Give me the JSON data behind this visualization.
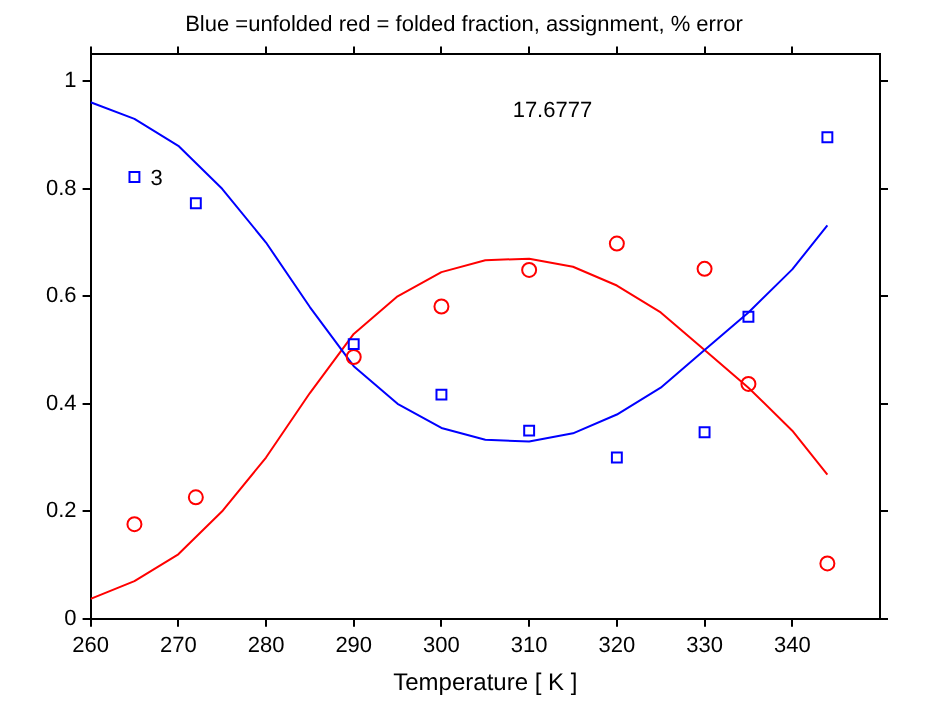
{
  "chart_data": {
    "type": "scatter",
    "title": "Blue =unfolded red = folded fraction, assignment, % error",
    "xlabel": "Temperature [ K ]",
    "xlim": [
      260,
      350
    ],
    "xticks": [
      260,
      270,
      280,
      290,
      300,
      310,
      320,
      330,
      340
    ],
    "ylim": [
      0,
      1.05
    ],
    "yticks": [
      0,
      0.2,
      0.4,
      0.6,
      0.8,
      1
    ],
    "grid": false,
    "legend": false,
    "annotations": [
      "17.6777",
      "3"
    ],
    "series": [
      {
        "type": "scatter",
        "marker": "square",
        "color": "#0000ff",
        "x": [
          265,
          272,
          290,
          300,
          310,
          320,
          330,
          335,
          344
        ],
        "values": [
          0.822,
          0.773,
          0.511,
          0.417,
          0.35,
          0.3,
          0.347,
          0.562,
          0.896
        ]
      },
      {
        "type": "scatter",
        "marker": "circle",
        "color": "#ff0000",
        "x": [
          265,
          272,
          290,
          300,
          310,
          320,
          330,
          335,
          344
        ],
        "values": [
          0.176,
          0.226,
          0.487,
          0.581,
          0.649,
          0.698,
          0.651,
          0.437,
          0.103
        ]
      },
      {
        "type": "line",
        "marker": "none",
        "color": "#0000ff",
        "x": [
          260,
          265,
          270,
          275,
          280,
          285,
          290,
          295,
          300,
          305,
          310,
          315,
          320,
          325,
          330,
          335,
          340,
          344
        ],
        "values": [
          0.961,
          0.93,
          0.88,
          0.8,
          0.7,
          0.58,
          0.47,
          0.4,
          0.355,
          0.333,
          0.33,
          0.345,
          0.38,
          0.43,
          0.5,
          0.57,
          0.65,
          0.732
        ]
      },
      {
        "type": "line",
        "marker": "none",
        "color": "#ff0000",
        "x": [
          260,
          265,
          270,
          275,
          280,
          285,
          290,
          295,
          300,
          305,
          310,
          315,
          320,
          325,
          330,
          335,
          340,
          344
        ],
        "values": [
          0.037,
          0.07,
          0.12,
          0.2,
          0.3,
          0.42,
          0.53,
          0.6,
          0.645,
          0.667,
          0.67,
          0.655,
          0.62,
          0.57,
          0.5,
          0.43,
          0.35,
          0.268
        ]
      }
    ]
  }
}
